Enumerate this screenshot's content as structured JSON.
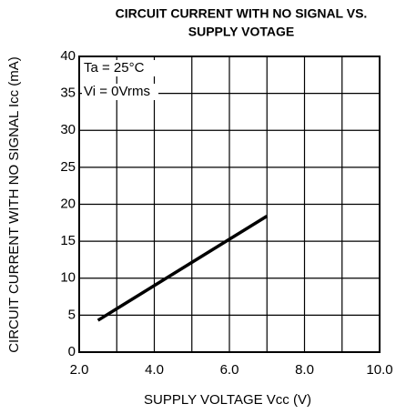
{
  "chart_data": {
    "type": "line",
    "title": [
      "CIRCUIT CURRENT WITH NO SIGNAL VS.",
      "SUPPLY VOTAGE"
    ],
    "x_label": "SUPPLY VOLTAGE Vcc (V)",
    "y_label": "CIRCUIT CURRENT WITH NO SIGNAL Icc (mA)",
    "annotations": [
      "Ta = 25°C",
      "Vi = 0Vrms"
    ],
    "x": [
      2.5,
      7.0
    ],
    "series": [
      {
        "name": null,
        "color": "#000000",
        "values": [
          4.3,
          18.4
        ]
      }
    ],
    "xlim": [
      2,
      10
    ],
    "ylim": [
      0,
      40
    ],
    "xticks": [
      {
        "value": 2,
        "label": "2.0"
      },
      {
        "value": 3,
        "label": null
      },
      {
        "value": 4,
        "label": "4.0"
      },
      {
        "value": 5,
        "label": null
      },
      {
        "value": 6,
        "label": "6.0"
      },
      {
        "value": 7,
        "label": null
      },
      {
        "value": 8,
        "label": "8.0"
      },
      {
        "value": 9,
        "label": null
      },
      {
        "value": 10,
        "label": "10.0"
      }
    ],
    "yticks": [
      0,
      5,
      10,
      15,
      20,
      25,
      30,
      35,
      40
    ],
    "grid": true
  }
}
